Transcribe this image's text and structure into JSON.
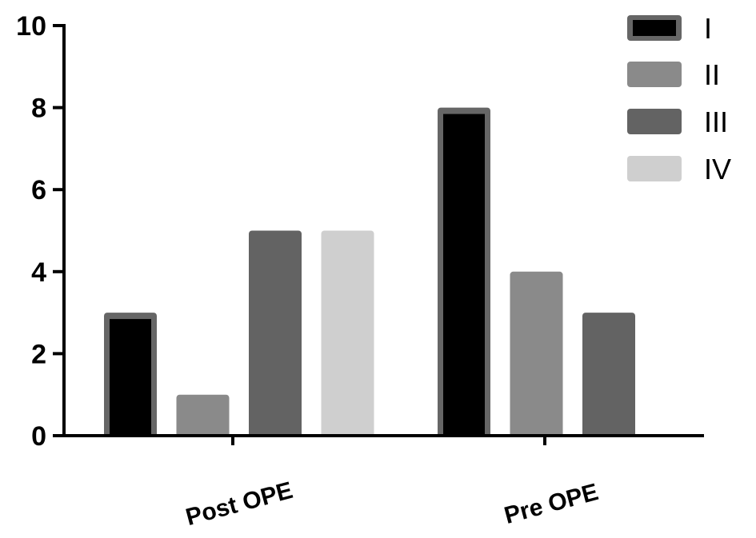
{
  "chart_data": {
    "type": "bar",
    "title": "",
    "xlabel": "",
    "ylabel": "",
    "categories": [
      "Post OPE",
      "Pre OPE"
    ],
    "series": [
      {
        "name": "I",
        "values": [
          3,
          8
        ],
        "color": "#000000",
        "border": "#666666"
      },
      {
        "name": "II",
        "values": [
          1,
          4
        ],
        "color": "#8a8a8a"
      },
      {
        "name": "III",
        "values": [
          5,
          3
        ],
        "color": "#636363"
      },
      {
        "name": "IV",
        "values": [
          5,
          0
        ],
        "color": "#cfcfcf"
      }
    ],
    "ylim": [
      0,
      10
    ],
    "yticks": [
      "0",
      "2",
      "4",
      "6",
      "8",
      "10"
    ],
    "grid": false,
    "legend": "top-right"
  }
}
